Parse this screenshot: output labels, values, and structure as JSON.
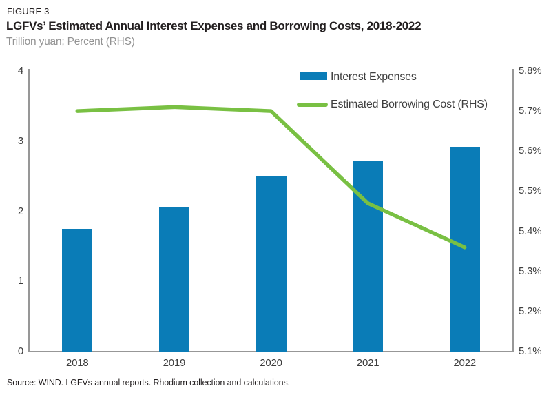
{
  "header": {
    "figure_label": "FIGURE 3",
    "title": "LGFVs’ Estimated Annual Interest Expenses and Borrowing Costs, 2018-2022",
    "subtitle": "Trillion yuan; Percent (RHS)"
  },
  "footer": {
    "source": "Source: WIND. LGFVs annual reports. Rhodium collection and calculations."
  },
  "chart_data": {
    "type": "bar+line",
    "title": "LGFVs’ Estimated Annual Interest Expenses and Borrowing Costs, 2018-2022",
    "categories": [
      "2018",
      "2019",
      "2020",
      "2021",
      "2022"
    ],
    "series": [
      {
        "name": "Interest Expenses",
        "type": "bar",
        "axis": "left",
        "color": "#0a7cb7",
        "values": [
          1.75,
          2.05,
          2.51,
          2.72,
          2.92
        ]
      },
      {
        "name": "Estimated Borrowing Cost (RHS)",
        "type": "line",
        "axis": "right",
        "color": "#79c043",
        "values": [
          5.7,
          5.71,
          5.7,
          5.47,
          5.36
        ]
      }
    ],
    "left_axis": {
      "label": "Trillion yuan",
      "min": 0,
      "max": 4,
      "ticks": [
        "0",
        "1",
        "2",
        "3",
        "4"
      ]
    },
    "right_axis": {
      "label": "Percent (RHS)",
      "min": 5.1,
      "max": 5.8,
      "ticks": [
        "5.1%",
        "5.2%",
        "5.3%",
        "5.4%",
        "5.5%",
        "5.6%",
        "5.7%",
        "5.8%"
      ]
    },
    "grid": false,
    "legend_position": "top-right-inside"
  }
}
